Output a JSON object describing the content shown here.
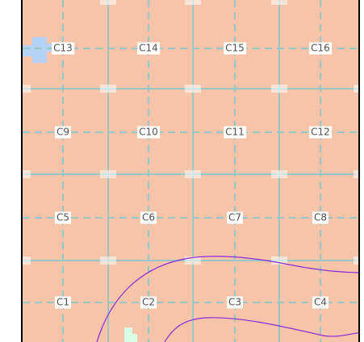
{
  "map": {
    "background_color": "#f6c4a9",
    "frame_color": "#000000",
    "gridline_color": "#96c8c8",
    "boundary_line_color": "#8a2bd9",
    "water_color": "#b4d2f4",
    "green_feature_color": "#d6ffe6",
    "tick_label_color": "#ffffff",
    "cells": [
      {
        "id": "C13"
      },
      {
        "id": "C14"
      },
      {
        "id": "C15"
      },
      {
        "id": "C16"
      },
      {
        "id": "C9"
      },
      {
        "id": "C10"
      },
      {
        "id": "C11"
      },
      {
        "id": "C12"
      },
      {
        "id": "C5"
      },
      {
        "id": "C6"
      },
      {
        "id": "C7"
      },
      {
        "id": "C8"
      },
      {
        "id": "C1"
      },
      {
        "id": "C2"
      },
      {
        "id": "C3"
      },
      {
        "id": "C4"
      }
    ]
  }
}
